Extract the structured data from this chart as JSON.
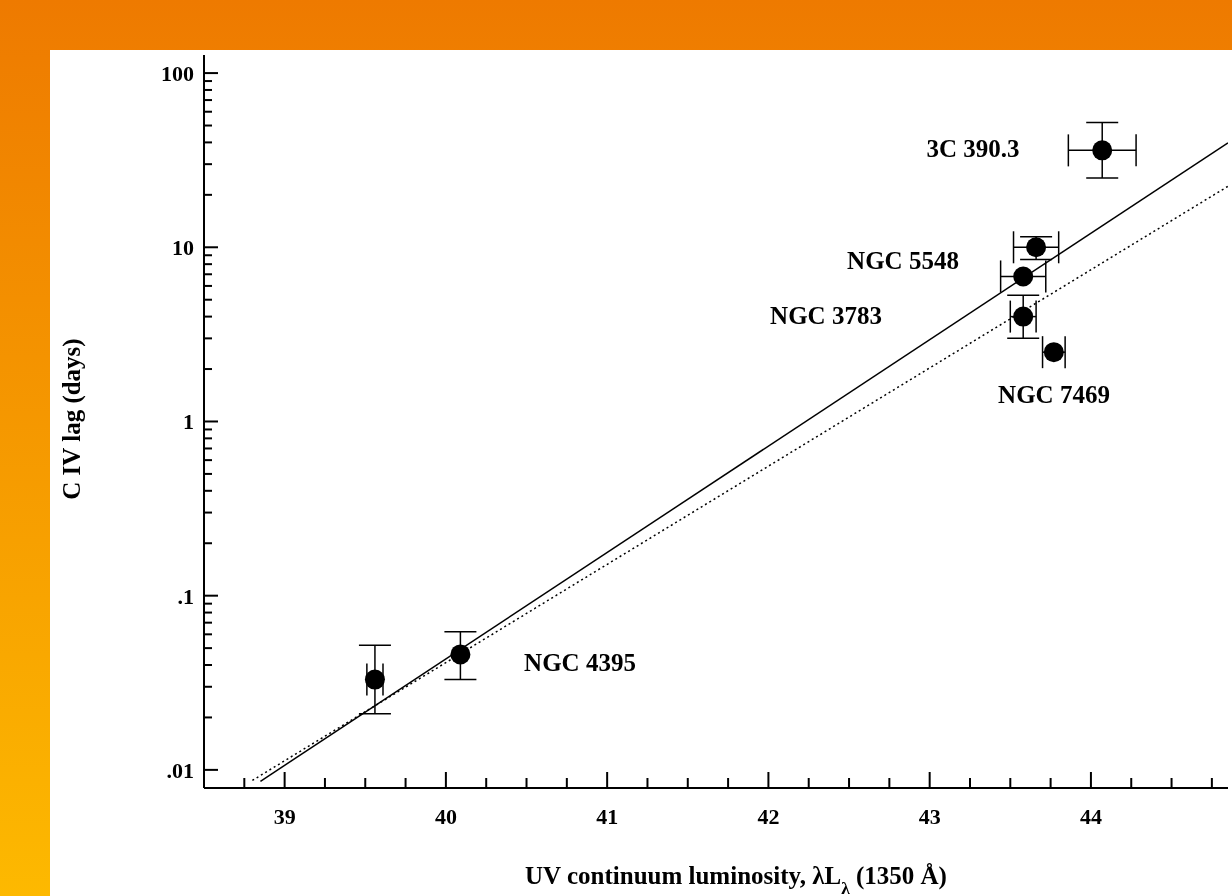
{
  "chart_data": {
    "type": "scatter",
    "xlabel": "UV continuum luminosity, λL$_{λ}$ (1350 Å)",
    "ylabel": "C IV lag (days)",
    "log": "y",
    "marker": "circle",
    "xlim": [
      38.5,
      44.85
    ],
    "ylim": [
      0.00787,
      127
    ],
    "xticks": [
      {
        "value": 38.75,
        "label": null
      },
      39,
      {
        "value": 39.25,
        "label": null
      },
      {
        "value": 39.5,
        "label": null
      },
      {
        "value": 39.75,
        "label": null
      },
      40,
      {
        "value": 40.25,
        "label": null
      },
      {
        "value": 40.5,
        "label": null
      },
      {
        "value": 40.75,
        "label": null
      },
      41,
      {
        "value": 41.25,
        "label": null
      },
      {
        "value": 41.5,
        "label": null
      },
      {
        "value": 41.75,
        "label": null
      },
      42,
      {
        "value": 42.25,
        "label": null
      },
      {
        "value": 42.5,
        "label": null
      },
      {
        "value": 42.75,
        "label": null
      },
      43,
      {
        "value": 43.25,
        "label": null
      },
      {
        "value": 43.5,
        "label": null
      },
      {
        "value": 43.75,
        "label": null
      },
      44,
      {
        "value": 44.25,
        "label": null
      },
      {
        "value": 44.5,
        "label": null
      },
      {
        "value": 44.75,
        "label": null
      }
    ],
    "yticks": [
      {
        "value": 0.01,
        "label": ".01"
      },
      {
        "value": 0.02,
        "label": null
      },
      {
        "value": 0.03,
        "label": null
      },
      {
        "value": 0.04,
        "label": null
      },
      {
        "value": 0.05,
        "label": null
      },
      {
        "value": 0.06,
        "label": null
      },
      {
        "value": 0.07,
        "label": null
      },
      {
        "value": 0.08,
        "label": null
      },
      {
        "value": 0.09,
        "label": null
      },
      {
        "value": 0.1,
        "label": ".1"
      },
      {
        "value": 0.2,
        "label": null
      },
      {
        "value": 0.3,
        "label": null
      },
      {
        "value": 0.4,
        "label": null
      },
      {
        "value": 0.5,
        "label": null
      },
      {
        "value": 0.6,
        "label": null
      },
      {
        "value": 0.7,
        "label": null
      },
      {
        "value": 0.8,
        "label": null
      },
      {
        "value": 0.9,
        "label": null
      },
      1,
      {
        "value": 2,
        "label": null
      },
      {
        "value": 3,
        "label": null
      },
      {
        "value": 4,
        "label": null
      },
      {
        "value": 5,
        "label": null
      },
      {
        "value": 6,
        "label": null
      },
      {
        "value": 7,
        "label": null
      },
      {
        "value": 8,
        "label": null
      },
      {
        "value": 9,
        "label": null
      },
      10,
      {
        "value": 20,
        "label": null
      },
      {
        "value": 30,
        "label": null
      },
      {
        "value": 40,
        "label": null
      },
      {
        "value": 50,
        "label": null
      },
      {
        "value": 60,
        "label": null
      },
      {
        "value": 70,
        "label": null
      },
      {
        "value": 80,
        "label": null
      },
      {
        "value": 90,
        "label": null
      },
      100
    ],
    "series": [
      {
        "color": "#000000",
        "x": [
          39.56,
          40.09,
          43.58,
          43.58,
          43.66,
          43.77,
          44.07
        ],
        "values": [
          0.033,
          0.046,
          4.0,
          6.8,
          10,
          2.5,
          36
        ],
        "errors": [
          [
            0.021,
            0.052
          ],
          [
            0.033,
            0.062
          ],
          [
            3.0,
            5.3
          ],
          null,
          [
            8.5,
            11.5
          ],
          null,
          [
            25,
            52
          ]
        ],
        "xerrors": [
          0.05,
          null,
          0.08,
          0.14,
          0.14,
          0.07,
          0.21
        ]
      },
      {
        "type": "line",
        "color": "#000000",
        "line_style": "solid",
        "marker": "none",
        "x": [
          38.85,
          44.85
        ],
        "values": [
          0.0086,
          39.8
        ]
      },
      {
        "type": "line",
        "color": "#000000",
        "line_style": "dotted",
        "marker": "none",
        "x": [
          38.8,
          44.85
        ],
        "values": [
          0.0087,
          22.4
        ]
      }
    ],
    "annotations": [
      "3C 390.3",
      "NGC 5548",
      "NGC 3783",
      "NGC 7469",
      "NGC 4395"
    ]
  }
}
